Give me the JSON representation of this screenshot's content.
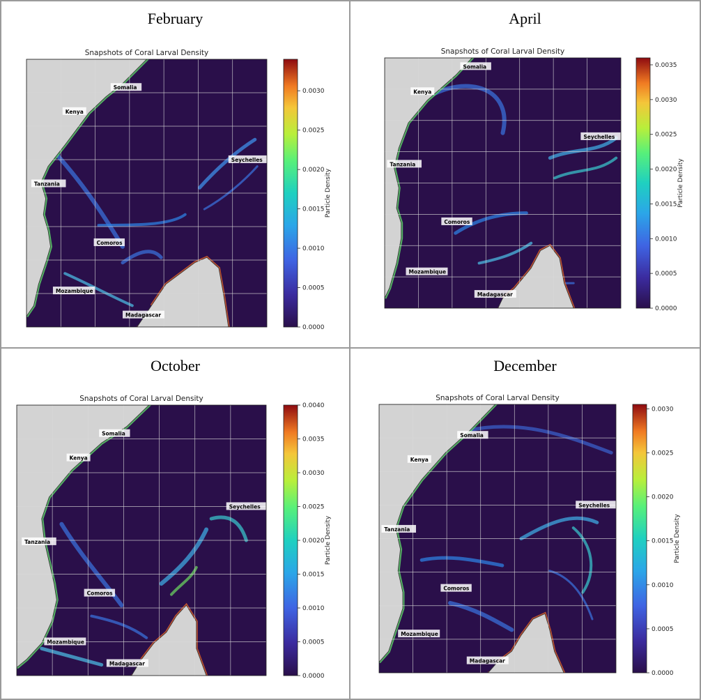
{
  "panels": [
    {
      "month": "February",
      "title": "Snapshots of Coral Larval Density",
      "cbar_label": "Particle Density",
      "ticks": [
        "0.0000",
        "0.0005",
        "0.0010",
        "0.0015",
        "0.0020",
        "0.0025",
        "0.0030"
      ],
      "vmax": 0.0034
    },
    {
      "month": "April",
      "title": "Snapshots of Coral Larval Density",
      "cbar_label": "Particle Density",
      "ticks": [
        "0.0000",
        "0.0005",
        "0.0010",
        "0.0015",
        "0.0020",
        "0.0025",
        "0.0030",
        "0.0035"
      ],
      "vmax": 0.0036
    },
    {
      "month": "October",
      "title": "Snapshots of Coral Larval Density",
      "cbar_label": "Particle Density",
      "ticks": [
        "0.0000",
        "0.0005",
        "0.0010",
        "0.0015",
        "0.0020",
        "0.0025",
        "0.0030",
        "0.0035",
        "0.0040"
      ],
      "vmax": 0.004
    },
    {
      "month": "December",
      "title": "Snapshots of Coral Larval Density",
      "cbar_label": "Particle Density",
      "ticks": [
        "0.0000",
        "0.0005",
        "0.0010",
        "0.0015",
        "0.0020",
        "0.0025",
        "0.0030"
      ],
      "vmax": 0.00305
    }
  ],
  "labels": [
    "Somalia",
    "Kenya",
    "Tanzania",
    "Seychelles",
    "Comoros",
    "Mozambique",
    "Madagascar"
  ],
  "colors": {
    "ocean": "#2a0f4a",
    "land": "#d3d3d3",
    "grid": "#d8d8d8"
  },
  "chart_data": [
    {
      "type": "heatmap",
      "title": "Snapshots of Coral Larval Density",
      "panel": "February",
      "colorbar_label": "Particle Density",
      "zlim": [
        0,
        0.0034
      ],
      "annotations": [
        "Somalia",
        "Kenya",
        "Tanzania",
        "Seychelles",
        "Comoros",
        "Mozambique",
        "Madagascar"
      ]
    },
    {
      "type": "heatmap",
      "title": "Snapshots of Coral Larval Density",
      "panel": "April",
      "colorbar_label": "Particle Density",
      "zlim": [
        0,
        0.0036
      ],
      "annotations": [
        "Somalia",
        "Kenya",
        "Tanzania",
        "Seychelles",
        "Comoros",
        "Mozambique",
        "Madagascar"
      ]
    },
    {
      "type": "heatmap",
      "title": "Snapshots of Coral Larval Density",
      "panel": "October",
      "colorbar_label": "Particle Density",
      "zlim": [
        0,
        0.004
      ],
      "annotations": [
        "Somalia",
        "Kenya",
        "Tanzania",
        "Seychelles",
        "Comoros",
        "Mozambique",
        "Madagascar"
      ]
    },
    {
      "type": "heatmap",
      "title": "Snapshots of Coral Larval Density",
      "panel": "December",
      "colorbar_label": "Particle Density",
      "zlim": [
        0,
        0.00305
      ],
      "annotations": [
        "Somalia",
        "Kenya",
        "Tanzania",
        "Seychelles",
        "Comoros",
        "Mozambique",
        "Madagascar"
      ]
    }
  ]
}
